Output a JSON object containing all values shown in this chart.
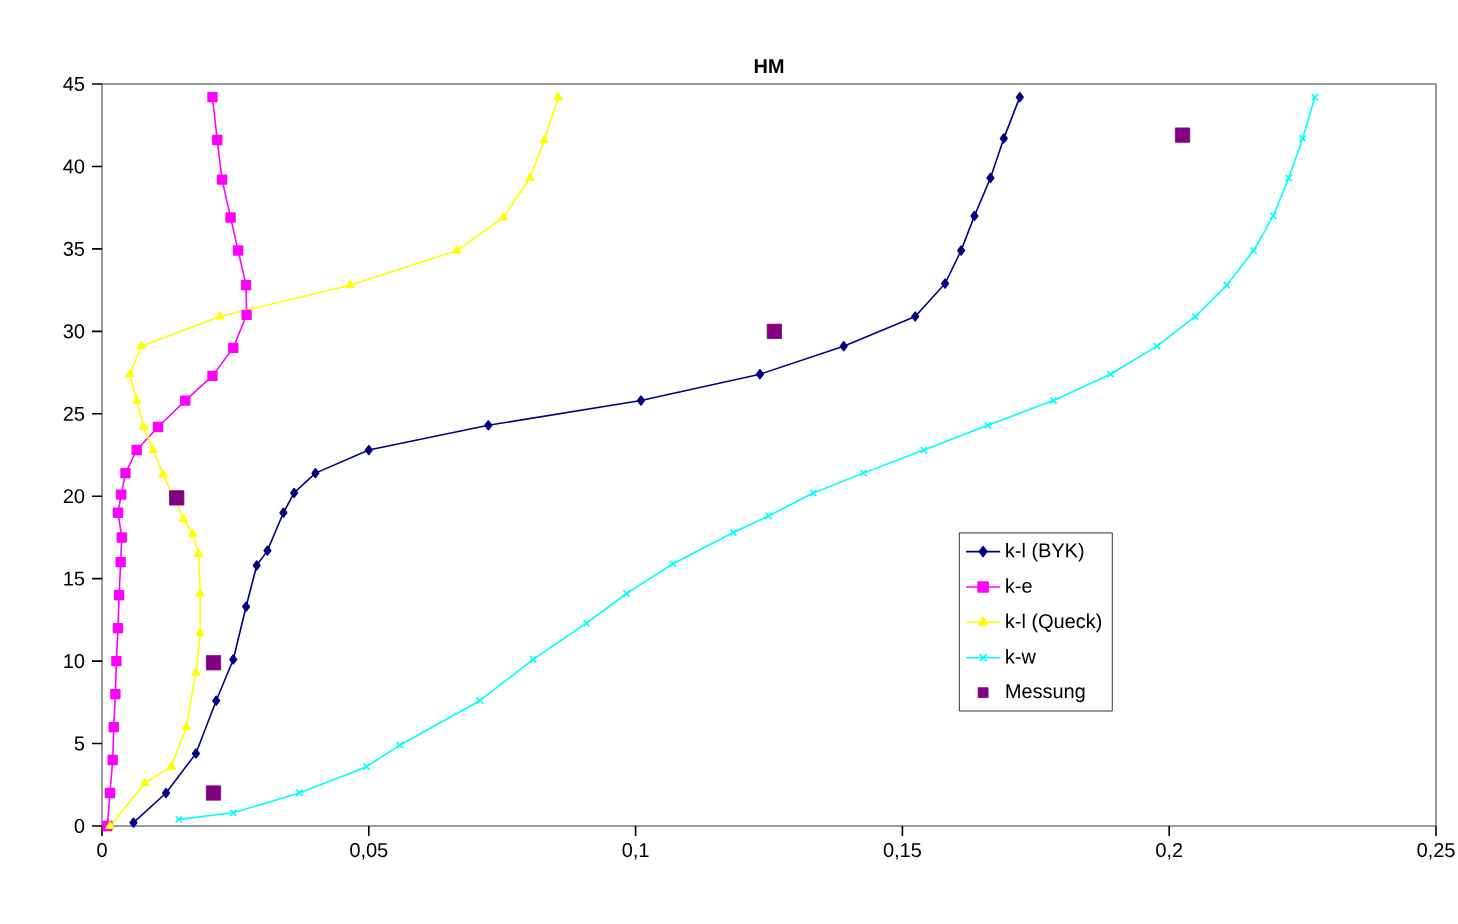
{
  "chart_data": {
    "type": "line",
    "title": "HM",
    "xlim": [
      0,
      0.25
    ],
    "ylim": [
      0,
      45
    ],
    "xticks": [
      0,
      {
        "value": 0.05,
        "label": "0,05"
      },
      {
        "value": 0.1,
        "label": "0,1"
      },
      {
        "value": 0.15,
        "label": "0,15"
      },
      {
        "value": 0.2,
        "label": "0,2"
      },
      {
        "value": 0.25,
        "label": "0,25"
      }
    ],
    "yticks": [
      0,
      5,
      10,
      15,
      20,
      25,
      30,
      35,
      40,
      45
    ],
    "legend": "bottom right",
    "series": [
      {
        "name": "k-l (BYK)",
        "color": "#000080",
        "marker": "diamond",
        "x": [
          0.0059,
          0.012,
          0.0176,
          0.0214,
          0.0246,
          0.027,
          0.029,
          0.031,
          0.034,
          0.036,
          0.04,
          0.05,
          0.0724,
          0.101,
          0.1233,
          0.139,
          0.1524,
          0.158,
          0.161,
          0.1635,
          0.1665,
          0.169,
          0.172
        ],
        "values": [
          0.2,
          2.0,
          4.4,
          7.6,
          10.1,
          13.3,
          15.8,
          16.7,
          19.0,
          20.2,
          21.4,
          22.8,
          24.3,
          25.8,
          27.4,
          29.1,
          30.9,
          32.9,
          34.9,
          37.0,
          39.3,
          41.7,
          44.2
        ]
      },
      {
        "name": "k-e",
        "color": "#ff00ff",
        "marker": "square",
        "x": [
          0.001,
          0.0015,
          0.002,
          0.0022,
          0.0025,
          0.0027,
          0.003,
          0.0032,
          0.0035,
          0.0037,
          0.003,
          0.0036,
          0.0044,
          0.0065,
          0.0105,
          0.0156,
          0.0207,
          0.0246,
          0.0271,
          0.027,
          0.0255,
          0.0241,
          0.0225,
          0.0216,
          0.0207
        ],
        "values": [
          0,
          2,
          4,
          6,
          8,
          10,
          12,
          14,
          16,
          17.5,
          19.0,
          20.1,
          21.4,
          22.8,
          24.2,
          25.8,
          27.3,
          29.0,
          31.0,
          32.8,
          34.9,
          36.9,
          39.2,
          41.6,
          44.2
        ]
      },
      {
        "name": "k-l (Queck)",
        "color": "#ffff00",
        "marker": "triangle",
        "x": [
          0.0015,
          0.008,
          0.013,
          0.0158,
          0.0176,
          0.0184,
          0.0184,
          0.0181,
          0.017,
          0.0153,
          0.0115,
          0.0096,
          0.0078,
          0.0065,
          0.0052,
          0.0074,
          0.0221,
          0.0465,
          0.0665,
          0.0752,
          0.0802,
          0.0829,
          0.0855
        ],
        "values": [
          0,
          2.6,
          3.6,
          6.0,
          9.3,
          11.7,
          14.1,
          16.5,
          17.7,
          18.6,
          21.3,
          22.8,
          24.2,
          25.8,
          27.4,
          29.1,
          30.9,
          32.8,
          34.9,
          36.9,
          39.3,
          41.6,
          44.2
        ]
      },
      {
        "name": "k-w",
        "color": "#00ffff",
        "marker": "cross",
        "x": [
          0.0144,
          0.0246,
          0.037,
          0.0496,
          0.0558,
          0.0708,
          0.0808,
          0.0908,
          0.0983,
          0.107,
          0.1183,
          0.1249,
          0.1333,
          0.1427,
          0.154,
          0.166,
          0.1783,
          0.189,
          0.1977,
          0.2049,
          0.2108,
          0.2158,
          0.2195,
          0.2224,
          0.225,
          0.2273
        ],
        "values": [
          0.4,
          0.8,
          2.0,
          3.6,
          4.9,
          7.6,
          10.1,
          12.3,
          14.1,
          15.9,
          17.8,
          18.8,
          20.2,
          21.4,
          22.8,
          24.3,
          25.8,
          27.4,
          29.1,
          30.9,
          32.8,
          34.9,
          37.0,
          39.3,
          41.7,
          44.2
        ]
      },
      {
        "name": "Messung",
        "color": "#800080",
        "type": "scatter",
        "marker": "square",
        "x": [
          0.014,
          0.0209,
          0.0209,
          0.126,
          0.2025
        ],
        "values": [
          19.9,
          9.9,
          2.0,
          30.0,
          41.9
        ]
      }
    ]
  }
}
